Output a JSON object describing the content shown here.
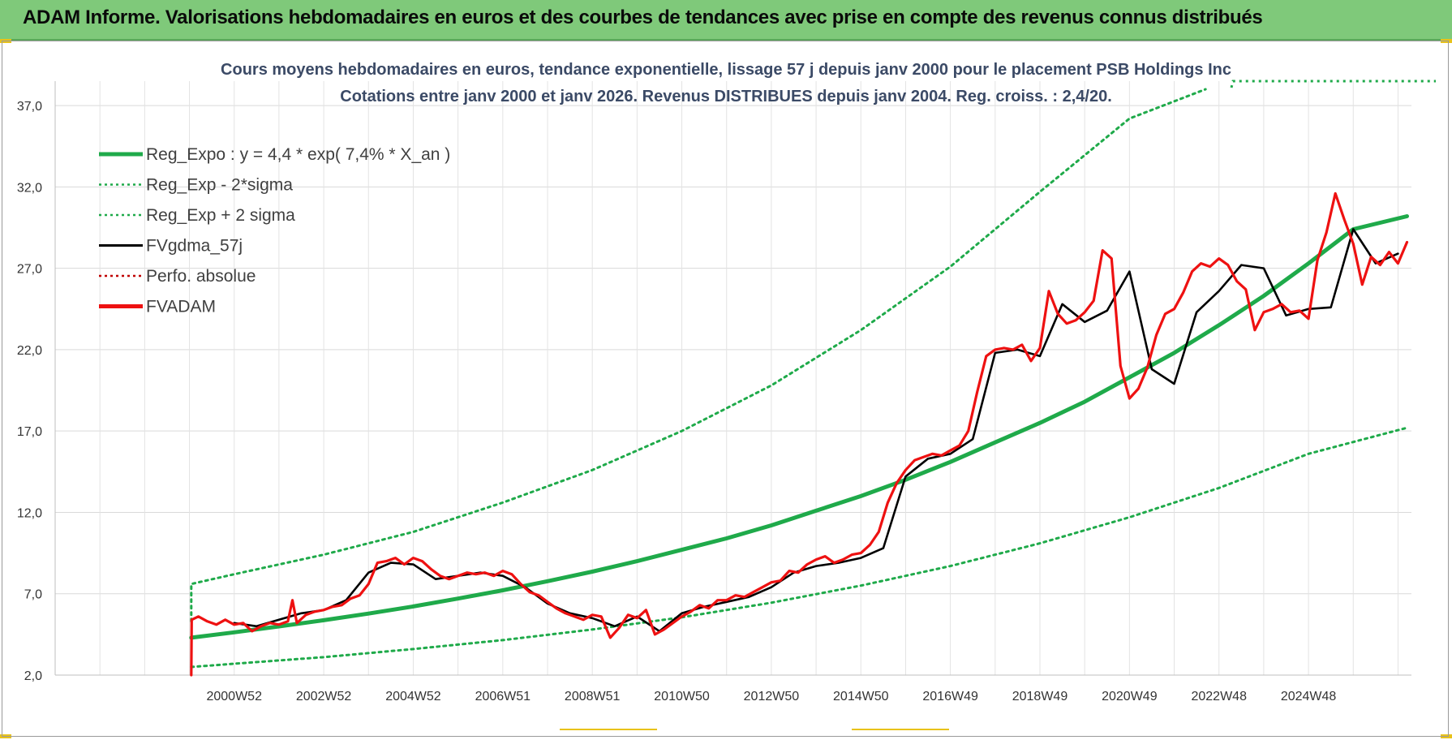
{
  "banner": {
    "title": "ADAM Informe. Valorisations hebdomadaires en euros et des courbes de tendances avec prise en compte des revenus connus distribués",
    "color": "#7fc97a"
  },
  "chart_data": {
    "type": "line",
    "title": "Cours moyens hebdomadaires en euros, tendance exponentielle, lissage 57 j depuis janv 2000 pour le placement PSB Holdings Inc",
    "subtitle": "Cotations entre janv 2000 et janv 2026. Revenus DISTRIBUES depuis janv 2004. Reg. croiss. : 2,4/20.",
    "ylim": [
      2.0,
      38.5
    ],
    "xlim": [
      1996.0,
      2026.3
    ],
    "y_ticks": [
      "2,0",
      "7,0",
      "12,0",
      "17,0",
      "22,0",
      "27,0",
      "32,0",
      "37,0"
    ],
    "y_tick_values": [
      2.0,
      7.0,
      12.0,
      17.0,
      22.0,
      27.0,
      32.0,
      37.0
    ],
    "x_ticks": [
      "2000W52",
      "2002W52",
      "2004W52",
      "2006W51",
      "2008W51",
      "2010W50",
      "2012W50",
      "2014W50",
      "2016W49",
      "2018W49",
      "2020W49",
      "2022W48",
      "2024W48"
    ],
    "x_tick_values": [
      2000.0,
      2002.0,
      2004.0,
      2006.0,
      2008.0,
      2010.0,
      2012.0,
      2014.0,
      2016.0,
      2018.0,
      2020.0,
      2022.0,
      2024.0
    ],
    "grid": true,
    "legend_position": "top-left",
    "series": [
      {
        "name": "Reg_Expo : y = 4,4 * exp( 7,4% *  X_an )",
        "color": "#1faa4a",
        "style": "solid-thick",
        "x": [
          1999.04,
          2000,
          2001,
          2002,
          2003,
          2004,
          2005,
          2006,
          2007,
          2008,
          2009,
          2010,
          2011,
          2012,
          2013,
          2014,
          2015,
          2016,
          2017,
          2018,
          2019,
          2020,
          2021,
          2022,
          2023,
          2024,
          2025,
          2026.2
        ],
        "y": [
          4.3,
          4.63,
          4.99,
          5.37,
          5.78,
          6.22,
          6.7,
          7.21,
          7.77,
          8.36,
          9.0,
          9.7,
          10.4,
          11.2,
          12.1,
          13.0,
          14.0,
          15.1,
          16.3,
          17.5,
          18.8,
          20.3,
          21.8,
          23.5,
          25.3,
          27.3,
          29.4,
          30.2
        ]
      },
      {
        "name": "Reg_Exp - 2*sigma",
        "color": "#1faa4a",
        "style": "dotted",
        "x": [
          1999.04,
          2000,
          2002,
          2004,
          2006,
          2008,
          2010,
          2012,
          2014,
          2016,
          2018,
          2020,
          2022,
          2024,
          2026.2
        ],
        "y": [
          2.5,
          2.7,
          3.1,
          3.6,
          4.15,
          4.8,
          5.55,
          6.45,
          7.5,
          8.7,
          10.1,
          11.7,
          13.5,
          15.6,
          17.2
        ]
      },
      {
        "name": "Reg_Exp + 2 sigma",
        "color": "#1faa4a",
        "style": "dotted",
        "x": [
          1999.04,
          1999.04,
          2000,
          2002,
          2004,
          2006,
          2008,
          2010,
          2012,
          2014,
          2016,
          2018,
          2020,
          2021.7
        ],
        "y": [
          5.3,
          7.6,
          8.2,
          9.4,
          10.8,
          12.6,
          14.6,
          17.0,
          19.8,
          23.2,
          27.1,
          31.7,
          36.2,
          38.0
        ]
      },
      {
        "name": "FVgdma_57j",
        "color": "#000000",
        "style": "solid",
        "x": [
          2000.0,
          2000.5,
          2001.0,
          2001.5,
          2002.0,
          2002.5,
          2003.0,
          2003.5,
          2004.0,
          2004.5,
          2005.0,
          2005.5,
          2006.0,
          2006.5,
          2007.0,
          2007.5,
          2008.0,
          2008.5,
          2009.0,
          2009.5,
          2010.0,
          2010.5,
          2011.0,
          2011.5,
          2012.0,
          2012.5,
          2013.0,
          2013.5,
          2014.0,
          2014.5,
          2015.0,
          2015.5,
          2016.0,
          2016.5,
          2017.0,
          2017.5,
          2018.0,
          2018.5,
          2019.0,
          2019.5,
          2020.0,
          2020.5,
          2021.0,
          2021.5,
          2022.0,
          2022.5,
          2023.0,
          2023.5,
          2024.0,
          2024.5,
          2025.0,
          2025.5,
          2026.0
        ],
        "y": [
          5.2,
          5.0,
          5.4,
          5.8,
          6.0,
          6.6,
          8.3,
          8.9,
          8.8,
          7.9,
          8.1,
          8.3,
          8.1,
          7.4,
          6.4,
          5.8,
          5.5,
          5.0,
          5.6,
          4.7,
          5.8,
          6.2,
          6.5,
          6.8,
          7.4,
          8.3,
          8.7,
          8.9,
          9.2,
          9.8,
          14.2,
          15.3,
          15.6,
          16.5,
          21.8,
          22.0,
          21.6,
          24.8,
          23.7,
          24.4,
          26.8,
          20.8,
          19.9,
          24.3,
          25.6,
          27.2,
          27.0,
          24.1,
          24.5,
          24.6,
          29.4,
          27.3,
          27.9
        ]
      },
      {
        "name": "Perfo. absolue",
        "color": "#c00000",
        "style": "dotted",
        "x": [],
        "y": []
      },
      {
        "name": "FVADAM",
        "color": "#ee1111",
        "style": "solid-thick",
        "x": [
          1999.04,
          1999.05,
          1999.2,
          1999.4,
          1999.6,
          1999.8,
          2000.0,
          2000.2,
          2000.4,
          2000.6,
          2000.8,
          2001.0,
          2001.2,
          2001.3,
          2001.4,
          2001.6,
          2001.8,
          2002.0,
          2002.2,
          2002.4,
          2002.6,
          2002.8,
          2003.0,
          2003.2,
          2003.4,
          2003.6,
          2003.8,
          2004.0,
          2004.2,
          2004.4,
          2004.6,
          2004.8,
          2005.0,
          2005.2,
          2005.4,
          2005.6,
          2005.8,
          2006.0,
          2006.2,
          2006.4,
          2006.6,
          2006.8,
          2007.0,
          2007.2,
          2007.4,
          2007.6,
          2007.8,
          2008.0,
          2008.2,
          2008.4,
          2008.6,
          2008.8,
          2009.0,
          2009.2,
          2009.4,
          2009.6,
          2009.8,
          2010.0,
          2010.2,
          2010.4,
          2010.6,
          2010.8,
          2011.0,
          2011.2,
          2011.4,
          2011.6,
          2011.8,
          2012.0,
          2012.2,
          2012.4,
          2012.6,
          2012.8,
          2013.0,
          2013.2,
          2013.4,
          2013.6,
          2013.8,
          2014.0,
          2014.2,
          2014.4,
          2014.6,
          2014.8,
          2015.0,
          2015.2,
          2015.4,
          2015.6,
          2015.8,
          2016.0,
          2016.2,
          2016.4,
          2016.6,
          2016.8,
          2017.0,
          2017.2,
          2017.4,
          2017.6,
          2017.8,
          2018.0,
          2018.2,
          2018.4,
          2018.6,
          2018.8,
          2019.0,
          2019.2,
          2019.4,
          2019.6,
          2019.8,
          2020.0,
          2020.2,
          2020.4,
          2020.6,
          2020.8,
          2021.0,
          2021.2,
          2021.4,
          2021.6,
          2021.8,
          2022.0,
          2022.2,
          2022.4,
          2022.6,
          2022.8,
          2023.0,
          2023.2,
          2023.4,
          2023.6,
          2023.8,
          2024.0,
          2024.2,
          2024.4,
          2024.6,
          2024.8,
          2025.0,
          2025.2,
          2025.4,
          2025.6,
          2025.8,
          2026.0,
          2026.2
        ],
        "y": [
          2.0,
          5.4,
          5.6,
          5.3,
          5.1,
          5.4,
          5.1,
          5.2,
          4.7,
          5.0,
          5.2,
          5.1,
          5.3,
          6.6,
          5.2,
          5.7,
          5.9,
          6.0,
          6.2,
          6.3,
          6.7,
          6.9,
          7.6,
          8.9,
          9.0,
          9.2,
          8.8,
          9.2,
          9.0,
          8.5,
          8.1,
          7.9,
          8.1,
          8.3,
          8.2,
          8.3,
          8.1,
          8.4,
          8.2,
          7.6,
          7.1,
          6.9,
          6.5,
          6.1,
          5.8,
          5.6,
          5.4,
          5.7,
          5.6,
          4.3,
          4.9,
          5.7,
          5.5,
          6.0,
          4.5,
          4.8,
          5.2,
          5.6,
          5.9,
          6.3,
          6.1,
          6.6,
          6.6,
          6.9,
          6.8,
          7.1,
          7.4,
          7.7,
          7.8,
          8.4,
          8.3,
          8.8,
          9.1,
          9.3,
          8.9,
          9.1,
          9.4,
          9.5,
          10.0,
          10.8,
          12.6,
          13.8,
          14.6,
          15.2,
          15.4,
          15.6,
          15.5,
          15.8,
          16.1,
          17.0,
          19.4,
          21.6,
          22.0,
          22.1,
          22.0,
          22.3,
          21.3,
          22.1,
          25.6,
          24.2,
          23.6,
          23.8,
          24.3,
          25.0,
          28.1,
          27.6,
          21.0,
          19.0,
          19.6,
          20.9,
          22.9,
          24.2,
          24.5,
          25.5,
          26.8,
          27.3,
          27.1,
          27.6,
          27.2,
          26.2,
          25.7,
          23.2,
          24.3,
          24.5,
          24.8,
          24.3,
          24.4,
          23.9,
          27.5,
          29.2,
          31.6,
          30.0,
          28.5,
          26.0,
          27.7,
          27.2,
          28.0,
          27.3,
          28.6
        ]
      }
    ]
  }
}
